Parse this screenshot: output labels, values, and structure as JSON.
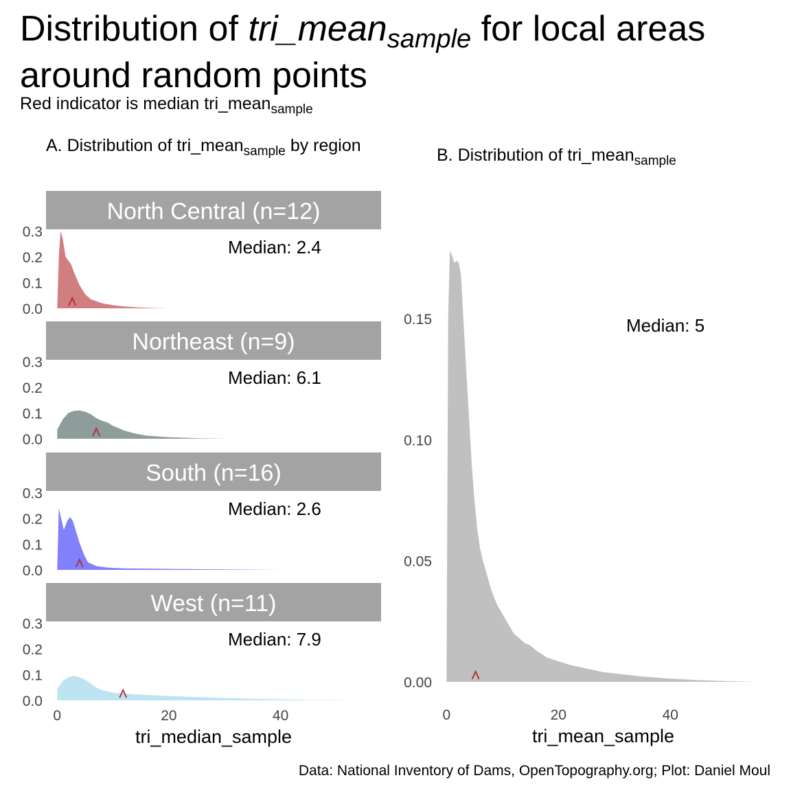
{
  "title_parts": {
    "pre": "Distribution of ",
    "italic": "tri_mean",
    "sub": "sample",
    "post": " for local areas around random points"
  },
  "subtitle_parts": {
    "pre": "Red indicator is median tri_mean",
    "sub": "sample"
  },
  "caption": "Data: National Inventory of Dams, OpenTopography.org; Plot: Daniel Moul",
  "chart_data": [
    {
      "type": "area",
      "title_parts": {
        "pre": "A. Distribution of tri_mean",
        "sub": "sample",
        "post": " by region"
      },
      "xlabel": "tri_median_sample",
      "xlim": [
        -2,
        58
      ],
      "x_ticks": [
        "0",
        "20",
        "40"
      ],
      "x_tick_values": [
        0,
        20,
        40
      ],
      "ylim": [
        0,
        0.33
      ],
      "y_ticks": [
        "0.0",
        "0.1",
        "0.2",
        "0.3"
      ],
      "y_tick_values": [
        0,
        0.1,
        0.2,
        0.3
      ],
      "median_prefix": "Median: ",
      "facets": [
        {
          "label": "North Central (n=12)",
          "median": 2.4,
          "median_label": "2.4",
          "color": "#c9676b",
          "marker_x": 2.7,
          "x": [
            0,
            0.3,
            0.6,
            1.0,
            1.5,
            2.0,
            2.5,
            3.0,
            4.0,
            5.0,
            6.0,
            8.0,
            10.0,
            12.0,
            15.0,
            18.0,
            20.0
          ],
          "y": [
            0.0,
            0.2,
            0.3,
            0.27,
            0.2,
            0.185,
            0.17,
            0.14,
            0.09,
            0.055,
            0.035,
            0.02,
            0.012,
            0.007,
            0.003,
            0.001,
            0.0
          ]
        },
        {
          "label": "Northeast (n=9)",
          "median": 6.1,
          "median_label": "6.1",
          "color": "#7a8c8a",
          "marker_x": 7.0,
          "x": [
            0,
            0.5,
            1.0,
            2.0,
            3.0,
            4.0,
            5.0,
            6.0,
            7.0,
            8.0,
            9.0,
            10.0,
            12.0,
            14.0,
            16.0,
            20.0,
            25.0,
            30.0
          ],
          "y": [
            0.035,
            0.055,
            0.075,
            0.1,
            0.108,
            0.11,
            0.105,
            0.095,
            0.08,
            0.07,
            0.063,
            0.05,
            0.032,
            0.02,
            0.012,
            0.006,
            0.002,
            0.0
          ]
        },
        {
          "label": "South (n=16)",
          "median": 2.6,
          "median_label": "2.6",
          "color": "#6b6bfa",
          "marker_x": 4.0,
          "x": [
            0,
            0.3,
            0.7,
            1.2,
            1.8,
            2.3,
            2.8,
            3.3,
            4.0,
            4.8,
            5.5,
            7.0,
            9.0,
            12.0,
            20.0,
            30.0,
            40.0
          ],
          "y": [
            0.0,
            0.24,
            0.2,
            0.155,
            0.19,
            0.205,
            0.19,
            0.155,
            0.105,
            0.06,
            0.03,
            0.015,
            0.009,
            0.006,
            0.004,
            0.002,
            0.0
          ]
        },
        {
          "label": "West (n=11)",
          "median": 7.9,
          "median_label": "7.9",
          "color": "#b3dff0",
          "marker_x": 11.8,
          "x": [
            0,
            0.5,
            1.0,
            2.0,
            3.0,
            4.0,
            5.0,
            6.0,
            7.0,
            8.0,
            10.0,
            12.0,
            15.0,
            20.0,
            25.0,
            30.0,
            35.0,
            40.0,
            45.0,
            50.0,
            53.0
          ],
          "y": [
            0.045,
            0.06,
            0.075,
            0.09,
            0.095,
            0.09,
            0.08,
            0.065,
            0.05,
            0.04,
            0.03,
            0.026,
            0.022,
            0.017,
            0.013,
            0.009,
            0.006,
            0.004,
            0.002,
            0.001,
            0.0
          ]
        }
      ]
    },
    {
      "type": "area",
      "title_parts": {
        "pre": "B. Distribution of tri_mean",
        "sub": "sample"
      },
      "xlabel": "tri_mean_sample",
      "xlim": [
        -2,
        58
      ],
      "ylim": [
        0,
        0.185
      ],
      "x_ticks": [
        "0",
        "20",
        "40"
      ],
      "x_tick_values": [
        0,
        20,
        40
      ],
      "y_ticks": [
        "0.00",
        "0.05",
        "0.10",
        "0.15"
      ],
      "y_tick_values": [
        0,
        0.05,
        0.1,
        0.15
      ],
      "median": 5,
      "median_label": "Median: 5",
      "color": "#c0c0c0",
      "marker_x": 5.2,
      "x": [
        0,
        0.3,
        0.6,
        1.0,
        1.4,
        1.8,
        2.2,
        2.6,
        3.0,
        3.5,
        4.0,
        4.5,
        5.0,
        5.5,
        6.0,
        6.5,
        7.0,
        7.5,
        8.0,
        9.0,
        10.0,
        11.0,
        12.0,
        13.0,
        14.0,
        15.0,
        16.0,
        18.0,
        20.0,
        22.0,
        25.0,
        28.0,
        30.0,
        35.0,
        40.0,
        45.0,
        50.0,
        55.0
      ],
      "y": [
        0.0,
        0.15,
        0.178,
        0.176,
        0.173,
        0.174,
        0.173,
        0.168,
        0.15,
        0.13,
        0.11,
        0.09,
        0.075,
        0.063,
        0.055,
        0.05,
        0.046,
        0.042,
        0.038,
        0.032,
        0.028,
        0.024,
        0.02,
        0.018,
        0.016,
        0.015,
        0.013,
        0.01,
        0.0085,
        0.007,
        0.0055,
        0.004,
        0.0035,
        0.0022,
        0.0013,
        0.0007,
        0.0003,
        0.0
      ]
    }
  ]
}
